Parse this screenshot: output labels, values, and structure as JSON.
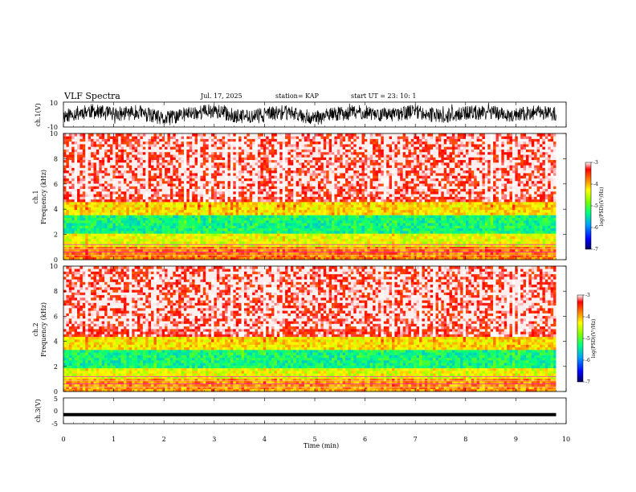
{
  "header": {
    "title": "VLF Spectra",
    "date": "Jul. 17, 2025",
    "station": "station= KAP",
    "start": "start UT =  23: 10: 1"
  },
  "chart_data": [
    {
      "type": "line",
      "panel": "ch1-waveform",
      "ylabel": "ch.1(V)",
      "ylim": [
        -10,
        10
      ],
      "yticks": [
        "10",
        "-10"
      ],
      "x": [
        0,
        0.5,
        1,
        1.5,
        2,
        2.5,
        3,
        3.5,
        4,
        4.5,
        5,
        5.5,
        6,
        6.5,
        7,
        7.5,
        8,
        8.5,
        9,
        9.5,
        9.8
      ],
      "values": [
        -1,
        3,
        0,
        2,
        -4,
        1,
        3,
        -2,
        0,
        2,
        -3,
        1,
        2,
        -1,
        3,
        -2,
        1,
        2,
        -1,
        2,
        0
      ]
    },
    {
      "type": "heatmap",
      "panel": "ch1-spectrogram",
      "ylabel_top": "ch.1",
      "ylabel": "Frequency (kHz)",
      "ylim": [
        0,
        10
      ],
      "yticks": [
        "0",
        "2",
        "4",
        "6",
        "8",
        "10"
      ],
      "xlim": [
        0,
        10
      ],
      "colorbar": {
        "label": "log(PSD)(V²/Hz)",
        "range": [
          -7,
          -3
        ],
        "ticks": [
          "-3",
          "-4",
          "-5",
          "-6",
          "-7"
        ]
      },
      "bands_khz": [
        {
          "from": 0,
          "to": 1.0,
          "level": -3.8
        },
        {
          "from": 1.0,
          "to": 2.0,
          "level": -4.4
        },
        {
          "from": 2.0,
          "to": 3.6,
          "level": -5.3
        },
        {
          "from": 3.6,
          "to": 4.6,
          "level": -4.2
        },
        {
          "from": 4.6,
          "to": 10,
          "level": -3.3
        }
      ]
    },
    {
      "type": "heatmap",
      "panel": "ch2-spectrogram",
      "ylabel_top": "ch.2",
      "ylabel": "Frequency (kHz)",
      "ylim": [
        0,
        10
      ],
      "yticks": [
        "0",
        "2",
        "4",
        "6",
        "8",
        "10"
      ],
      "xlim": [
        0,
        10
      ],
      "colorbar": {
        "label": "log(PSD)(V²/Hz)",
        "range": [
          -7,
          -3
        ],
        "ticks": [
          "-3",
          "-4",
          "-5",
          "-6",
          "-7"
        ]
      },
      "bands_khz": [
        {
          "from": 0,
          "to": 1.0,
          "level": -3.9
        },
        {
          "from": 1.0,
          "to": 1.9,
          "level": -4.4
        },
        {
          "from": 1.9,
          "to": 3.3,
          "level": -5.3
        },
        {
          "from": 3.3,
          "to": 4.3,
          "level": -4.2
        },
        {
          "from": 4.3,
          "to": 10,
          "level": -3.3
        }
      ]
    },
    {
      "type": "line",
      "panel": "ch3-waveform",
      "ylabel": "ch.3(V)",
      "ylim": [
        -5,
        5
      ],
      "yticks": [
        "5",
        "0",
        "-5"
      ],
      "x": [
        0,
        9.8
      ],
      "values": [
        -1.5,
        -1.5
      ]
    }
  ],
  "xaxis": {
    "label": "Time (min)",
    "range": [
      0,
      10
    ],
    "ticks": [
      "0",
      "1",
      "2",
      "3",
      "4",
      "5",
      "6",
      "7",
      "8",
      "9",
      "10"
    ]
  }
}
